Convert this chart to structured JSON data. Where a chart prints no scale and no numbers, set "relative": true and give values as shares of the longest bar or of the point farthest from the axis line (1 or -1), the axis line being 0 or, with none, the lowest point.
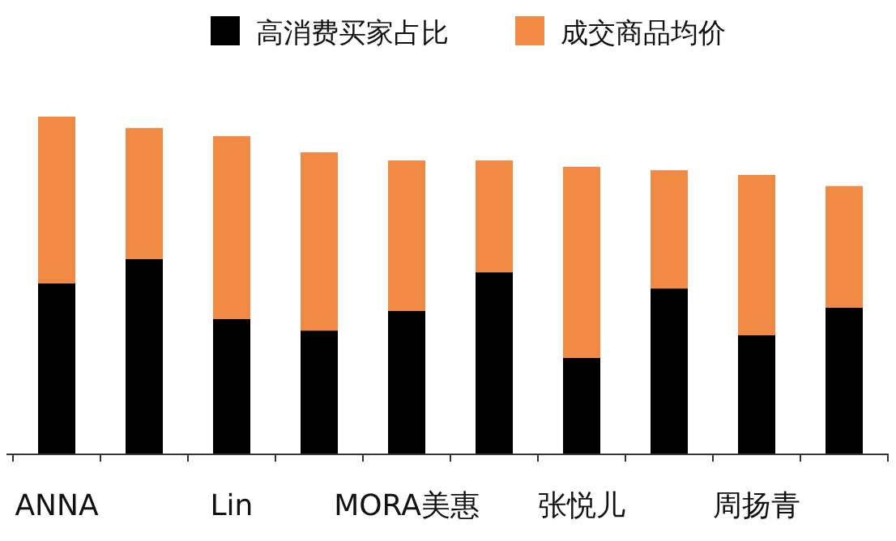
{
  "chart_data": {
    "type": "bar",
    "stacked": true,
    "relative": true,
    "legend": "top",
    "categories": [
      "ANNA",
      null,
      "Lin",
      null,
      "MORA美惠",
      null,
      "张悦儿",
      null,
      "周扬青",
      null
    ],
    "series": [
      {
        "name": "高消费买家占比",
        "color": "#000000",
        "values": [
          0.505,
          0.577,
          0.399,
          0.365,
          0.423,
          0.538,
          0.284,
          0.49,
          0.351,
          0.433
        ]
      },
      {
        "name": "成交商品均价",
        "color": "#f08a45",
        "values": [
          0.495,
          0.389,
          0.543,
          0.529,
          0.447,
          0.332,
          0.567,
          0.351,
          0.476,
          0.361
        ]
      }
    ]
  }
}
